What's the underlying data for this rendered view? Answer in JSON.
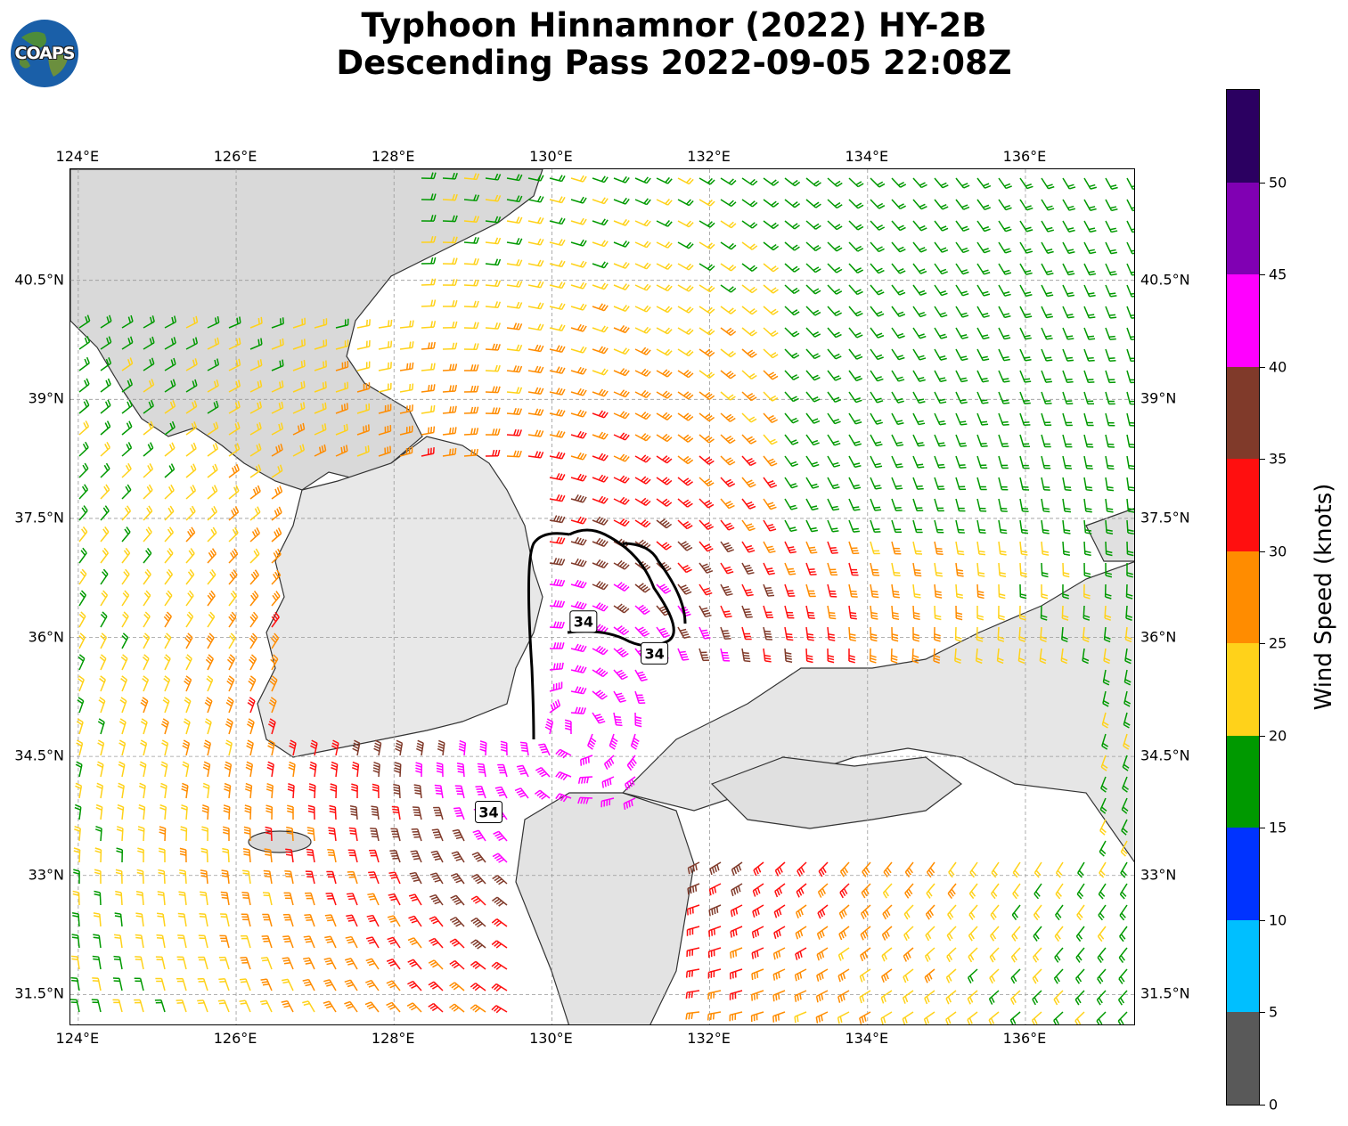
{
  "title": {
    "line1": "Typhoon Hinnamnor (2022) HY-2B",
    "line2": "Descending Pass 2022-09-05 22:08Z"
  },
  "logo": {
    "text": "COAPS"
  },
  "map": {
    "lon_range": [
      123.9,
      137.4
    ],
    "lat_range": [
      31.1,
      41.9
    ],
    "lon_ticks": [
      "124°E",
      "126°E",
      "128°E",
      "130°E",
      "132°E",
      "134°E",
      "136°E"
    ],
    "lat_ticks": [
      "40.5°N",
      "39°N",
      "37.5°N",
      "36°N",
      "34.5°N",
      "33°N",
      "31.5°N"
    ],
    "lon_values": [
      124,
      126,
      128,
      130,
      132,
      134,
      136
    ],
    "lat_values": [
      40.5,
      39,
      37.5,
      36,
      34.5,
      33,
      31.5
    ],
    "contour_label": "34",
    "contour_label_positions_lonlat": [
      [
        130.4,
        36.2
      ],
      [
        131.3,
        35.8
      ],
      [
        129.2,
        33.8
      ]
    ]
  },
  "colorbar": {
    "title": "Wind Speed (knots)",
    "labels": [
      "0",
      "5",
      "10",
      "15",
      "20",
      "25",
      "30",
      "35",
      "40",
      "45",
      "50"
    ],
    "bins": [
      {
        "min": 0,
        "max": 5,
        "color": "#595959"
      },
      {
        "min": 5,
        "max": 10,
        "color": "#00bfff"
      },
      {
        "min": 10,
        "max": 15,
        "color": "#0033ff"
      },
      {
        "min": 15,
        "max": 20,
        "color": "#009900"
      },
      {
        "min": 20,
        "max": 25,
        "color": "#ffd21a"
      },
      {
        "min": 25,
        "max": 30,
        "color": "#ff8c00"
      },
      {
        "min": 30,
        "max": 35,
        "color": "#ff0f0f"
      },
      {
        "min": 35,
        "max": 40,
        "color": "#803a2a"
      },
      {
        "min": 40,
        "max": 45,
        "color": "#ff00ff"
      },
      {
        "min": 45,
        "max": 50,
        "color": "#8000b3"
      },
      {
        "min": 50,
        "max": 55,
        "color": "#2b0061"
      }
    ]
  }
}
